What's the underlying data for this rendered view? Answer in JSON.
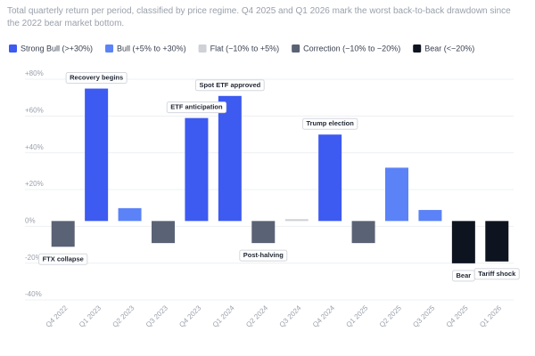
{
  "chart_data": {
    "type": "bar",
    "subtitle": "Total quarterly return per period, classified by price regime. Q4 2025 and Q1 2026 mark the worst back-to-back drawdown since the 2022 bear market bottom.",
    "categories": [
      "Q4 2022",
      "Q1 2023",
      "Q2 2023",
      "Q3 2023",
      "Q4 2023",
      "Q1 2024",
      "Q2 2024",
      "Q3 2024",
      "Q4 2024",
      "Q1 2025",
      "Q2 2025",
      "Q3 2025",
      "Q4 2025",
      "Q1 2026"
    ],
    "series": [
      {
        "name": "Strong Bull (>+30%)",
        "color": "#3d5af1",
        "values": [
          null,
          72,
          null,
          null,
          56,
          68,
          null,
          null,
          47,
          null,
          null,
          null,
          null,
          null
        ]
      },
      {
        "name": "Bull (+5% to +30%)",
        "color": "#5b82f7",
        "values": [
          null,
          null,
          7,
          null,
          null,
          null,
          null,
          null,
          null,
          null,
          29,
          6,
          null,
          null
        ]
      },
      {
        "name": "Flat (−10% to +5%)",
        "color": "#cfd1d6",
        "values": [
          null,
          null,
          null,
          null,
          null,
          null,
          null,
          1,
          null,
          null,
          null,
          null,
          null,
          null
        ]
      },
      {
        "name": "Correction (−10% to −20%)",
        "color": "#5a6275",
        "values": [
          -14,
          null,
          null,
          -12,
          null,
          null,
          -12,
          null,
          null,
          -12,
          null,
          null,
          null,
          null
        ]
      },
      {
        "name": "Bear (<−20%)",
        "color": "#0d1420",
        "values": [
          null,
          null,
          null,
          null,
          null,
          null,
          null,
          null,
          null,
          null,
          null,
          null,
          -23,
          -22
        ]
      }
    ],
    "annotations": [
      {
        "category": "Q4 2022",
        "text": "FTX collapse"
      },
      {
        "category": "Q1 2023",
        "text": "Recovery begins"
      },
      {
        "category": "Q4 2023",
        "text": "ETF anticipation"
      },
      {
        "category": "Q1 2024",
        "text": "Spot ETF approved"
      },
      {
        "category": "Q2 2024",
        "text": "Post-halving"
      },
      {
        "category": "Q4 2024",
        "text": "Trump election"
      },
      {
        "category": "Q4 2025",
        "text": "Bear"
      },
      {
        "category": "Q1 2026",
        "text": "Tariff shock"
      }
    ],
    "ylim": [
      -40,
      80
    ],
    "yticks": [
      {
        "value": -40,
        "label": "-40%"
      },
      {
        "value": -20,
        "label": "-20%"
      },
      {
        "value": 0,
        "label": "0%"
      },
      {
        "value": 20,
        "label": "+20%"
      },
      {
        "value": 40,
        "label": "+40%"
      },
      {
        "value": 60,
        "label": "+60%"
      },
      {
        "value": 80,
        "label": "+80%"
      }
    ],
    "grid": true
  }
}
